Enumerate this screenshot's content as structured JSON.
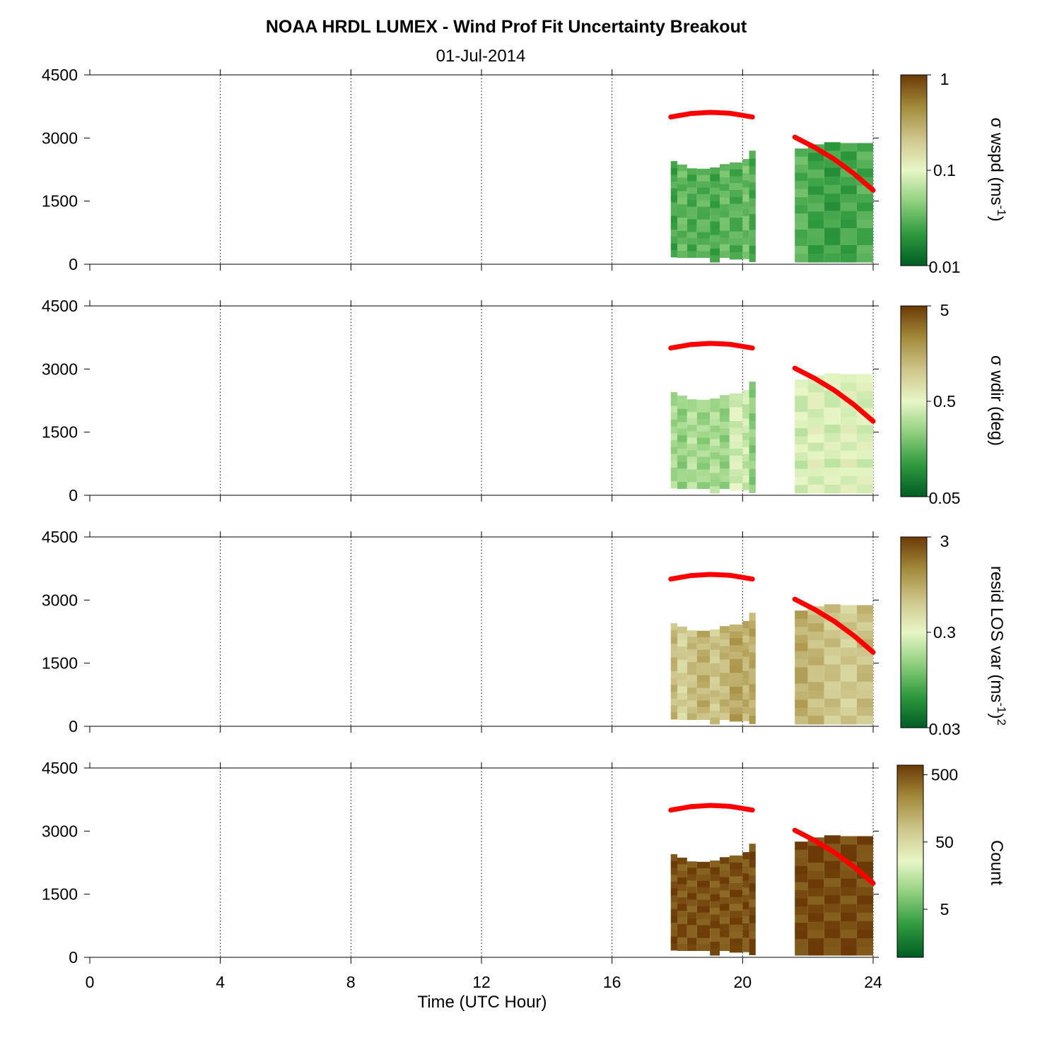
{
  "chart_data": {
    "type": "heatmap",
    "title": "NOAA HRDL LUMEX - Wind Prof Fit Uncertainty Breakout",
    "subtitle": "01-Jul-2014",
    "xlabel": "Time (UTC Hour)",
    "xlim": [
      0,
      24
    ],
    "x_ticks": [
      0,
      4,
      8,
      12,
      16,
      20,
      24
    ],
    "x_tick_labels": [
      "0",
      "4",
      "8",
      "12",
      "16",
      "20",
      "24"
    ],
    "ylim": [
      0,
      4500
    ],
    "y_ticks": [
      0,
      1500,
      3000,
      4500
    ],
    "y_tick_labels": [
      "0",
      "1500",
      "3000",
      "4500"
    ],
    "grid": "vertical dotted at x ticks",
    "colormap": [
      "#005c24",
      "#2f9a3e",
      "#8ecf7c",
      "#e8f6c6",
      "#cdc58a",
      "#a38a3a",
      "#6b3a06"
    ],
    "data_blocks": [
      {
        "x_start": 17.8,
        "x_end": 20.4
      },
      {
        "x_start": 21.6,
        "x_end": 24.0
      }
    ],
    "overlay_lines": [
      {
        "color": "#ff0000",
        "x": [
          17.8,
          18.4,
          19.0,
          19.6,
          20.3
        ],
        "y": [
          3500,
          3580,
          3610,
          3590,
          3500
        ]
      },
      {
        "color": "#ff0000",
        "x": [
          21.6,
          22.2,
          22.8,
          23.4,
          24.0
        ],
        "y": [
          3020,
          2780,
          2500,
          2160,
          1760
        ]
      }
    ],
    "panels": [
      {
        "cb_label": "σ wspd (ms",
        "cb_sup": "-1",
        "cb_suffix": ")",
        "cb_sup2": "",
        "cb_scale": "log",
        "cb_tick_labels": [
          "1",
          "0.1",
          "0.01"
        ],
        "columns": [
          {
            "x0": 17.8,
            "x1": 18.0,
            "y_top": 2450,
            "y_bot": 170,
            "level": 0.2
          },
          {
            "x0": 18.0,
            "x1": 18.3,
            "y_top": 2370,
            "y_bot": 160,
            "level": 0.26
          },
          {
            "x0": 18.3,
            "x1": 18.6,
            "y_top": 2280,
            "y_bot": 160,
            "level": 0.22
          },
          {
            "x0": 18.6,
            "x1": 19.0,
            "y_top": 2270,
            "y_bot": 160,
            "level": 0.24
          },
          {
            "x0": 19.0,
            "x1": 19.3,
            "y_top": 2300,
            "y_bot": 50,
            "level": 0.21
          },
          {
            "x0": 19.3,
            "x1": 19.6,
            "y_top": 2380,
            "y_bot": 160,
            "level": 0.26
          },
          {
            "x0": 19.6,
            "x1": 20.0,
            "y_top": 2420,
            "y_bot": 120,
            "level": 0.23
          },
          {
            "x0": 20.0,
            "x1": 20.2,
            "y_top": 2500,
            "y_bot": 130,
            "level": 0.28
          },
          {
            "x0": 20.2,
            "x1": 20.4,
            "y_top": 2700,
            "y_bot": 60,
            "level": 0.22
          },
          {
            "x0": 21.6,
            "x1": 22.0,
            "y_top": 2750,
            "y_bot": 50,
            "level": 0.24
          },
          {
            "x0": 22.0,
            "x1": 22.5,
            "y_top": 2850,
            "y_bot": 50,
            "level": 0.2
          },
          {
            "x0": 22.5,
            "x1": 23.0,
            "y_top": 2900,
            "y_bot": 50,
            "level": 0.18
          },
          {
            "x0": 23.0,
            "x1": 23.5,
            "y_top": 2880,
            "y_bot": 50,
            "level": 0.2
          },
          {
            "x0": 23.5,
            "x1": 24.0,
            "y_top": 2880,
            "y_bot": 50,
            "level": 0.22
          }
        ]
      },
      {
        "cb_label": "σ wdir (deg)",
        "cb_sup": "",
        "cb_suffix": "",
        "cb_sup2": "",
        "cb_scale": "log",
        "cb_tick_labels": [
          "5",
          "0.5",
          "0.05"
        ],
        "columns": [
          {
            "x0": 17.8,
            "x1": 18.0,
            "y_top": 2450,
            "y_bot": 170,
            "level": 0.38
          },
          {
            "x0": 18.0,
            "x1": 18.3,
            "y_top": 2370,
            "y_bot": 160,
            "level": 0.34
          },
          {
            "x0": 18.3,
            "x1": 18.6,
            "y_top": 2280,
            "y_bot": 160,
            "level": 0.4
          },
          {
            "x0": 18.6,
            "x1": 19.0,
            "y_top": 2270,
            "y_bot": 160,
            "level": 0.36
          },
          {
            "x0": 19.0,
            "x1": 19.3,
            "y_top": 2300,
            "y_bot": 50,
            "level": 0.39
          },
          {
            "x0": 19.3,
            "x1": 19.6,
            "y_top": 2380,
            "y_bot": 160,
            "level": 0.35
          },
          {
            "x0": 19.6,
            "x1": 20.0,
            "y_top": 2420,
            "y_bot": 120,
            "level": 0.47
          },
          {
            "x0": 20.0,
            "x1": 20.2,
            "y_top": 2500,
            "y_bot": 130,
            "level": 0.44
          },
          {
            "x0": 20.2,
            "x1": 20.4,
            "y_top": 2700,
            "y_bot": 60,
            "level": 0.33
          },
          {
            "x0": 21.6,
            "x1": 22.0,
            "y_top": 2750,
            "y_bot": 50,
            "level": 0.46
          },
          {
            "x0": 22.0,
            "x1": 22.5,
            "y_top": 2850,
            "y_bot": 50,
            "level": 0.49
          },
          {
            "x0": 22.5,
            "x1": 23.0,
            "y_top": 2900,
            "y_bot": 50,
            "level": 0.47
          },
          {
            "x0": 23.0,
            "x1": 23.5,
            "y_top": 2880,
            "y_bot": 50,
            "level": 0.5
          },
          {
            "x0": 23.5,
            "x1": 24.0,
            "y_top": 2880,
            "y_bot": 50,
            "level": 0.48
          }
        ]
      },
      {
        "cb_label": "resid LOS var (ms",
        "cb_sup": "-1",
        "cb_suffix": ")",
        "cb_sup2": "2",
        "cb_scale": "log",
        "cb_tick_labels": [
          "3",
          "0.3",
          "0.03"
        ],
        "columns": [
          {
            "x0": 17.8,
            "x1": 18.0,
            "y_top": 2450,
            "y_bot": 170,
            "level": 0.7
          },
          {
            "x0": 18.0,
            "x1": 18.3,
            "y_top": 2370,
            "y_bot": 160,
            "level": 0.62
          },
          {
            "x0": 18.3,
            "x1": 18.6,
            "y_top": 2280,
            "y_bot": 160,
            "level": 0.68
          },
          {
            "x0": 18.6,
            "x1": 19.0,
            "y_top": 2270,
            "y_bot": 160,
            "level": 0.72
          },
          {
            "x0": 19.0,
            "x1": 19.3,
            "y_top": 2300,
            "y_bot": 50,
            "level": 0.66
          },
          {
            "x0": 19.3,
            "x1": 19.6,
            "y_top": 2380,
            "y_bot": 160,
            "level": 0.7
          },
          {
            "x0": 19.6,
            "x1": 20.0,
            "y_top": 2420,
            "y_bot": 120,
            "level": 0.76
          },
          {
            "x0": 20.0,
            "x1": 20.2,
            "y_top": 2500,
            "y_bot": 130,
            "level": 0.72
          },
          {
            "x0": 20.2,
            "x1": 20.4,
            "y_top": 2700,
            "y_bot": 60,
            "level": 0.74
          },
          {
            "x0": 21.6,
            "x1": 22.0,
            "y_top": 2750,
            "y_bot": 50,
            "level": 0.74
          },
          {
            "x0": 22.0,
            "x1": 22.5,
            "y_top": 2850,
            "y_bot": 50,
            "level": 0.7
          },
          {
            "x0": 22.5,
            "x1": 23.0,
            "y_top": 2900,
            "y_bot": 50,
            "level": 0.66
          },
          {
            "x0": 23.0,
            "x1": 23.5,
            "y_top": 2880,
            "y_bot": 50,
            "level": 0.64
          },
          {
            "x0": 23.5,
            "x1": 24.0,
            "y_top": 2880,
            "y_bot": 50,
            "level": 0.68
          }
        ]
      },
      {
        "cb_label": "Count",
        "cb_sup": "",
        "cb_suffix": "",
        "cb_sup2": "",
        "cb_scale": "log",
        "cb_tick_labels": [
          "500",
          "50",
          "5"
        ],
        "columns": [
          {
            "x0": 17.8,
            "x1": 18.0,
            "y_top": 2450,
            "y_bot": 170,
            "level": 0.96
          },
          {
            "x0": 18.0,
            "x1": 18.3,
            "y_top": 2370,
            "y_bot": 160,
            "level": 0.95
          },
          {
            "x0": 18.3,
            "x1": 18.6,
            "y_top": 2280,
            "y_bot": 160,
            "level": 0.95
          },
          {
            "x0": 18.6,
            "x1": 19.0,
            "y_top": 2270,
            "y_bot": 160,
            "level": 0.96
          },
          {
            "x0": 19.0,
            "x1": 19.3,
            "y_top": 2300,
            "y_bot": 50,
            "level": 0.95
          },
          {
            "x0": 19.3,
            "x1": 19.6,
            "y_top": 2380,
            "y_bot": 160,
            "level": 0.95
          },
          {
            "x0": 19.6,
            "x1": 20.0,
            "y_top": 2420,
            "y_bot": 120,
            "level": 0.95
          },
          {
            "x0": 20.0,
            "x1": 20.2,
            "y_top": 2500,
            "y_bot": 130,
            "level": 0.95
          },
          {
            "x0": 20.2,
            "x1": 20.4,
            "y_top": 2700,
            "y_bot": 60,
            "level": 0.96
          },
          {
            "x0": 21.6,
            "x1": 22.0,
            "y_top": 2750,
            "y_bot": 50,
            "level": 0.97
          },
          {
            "x0": 22.0,
            "x1": 22.5,
            "y_top": 2850,
            "y_bot": 50,
            "level": 0.97
          },
          {
            "x0": 22.5,
            "x1": 23.0,
            "y_top": 2900,
            "y_bot": 50,
            "level": 0.97
          },
          {
            "x0": 23.0,
            "x1": 23.5,
            "y_top": 2880,
            "y_bot": 50,
            "level": 0.97
          },
          {
            "x0": 23.5,
            "x1": 24.0,
            "y_top": 2880,
            "y_bot": 50,
            "level": 0.97
          }
        ]
      }
    ]
  }
}
